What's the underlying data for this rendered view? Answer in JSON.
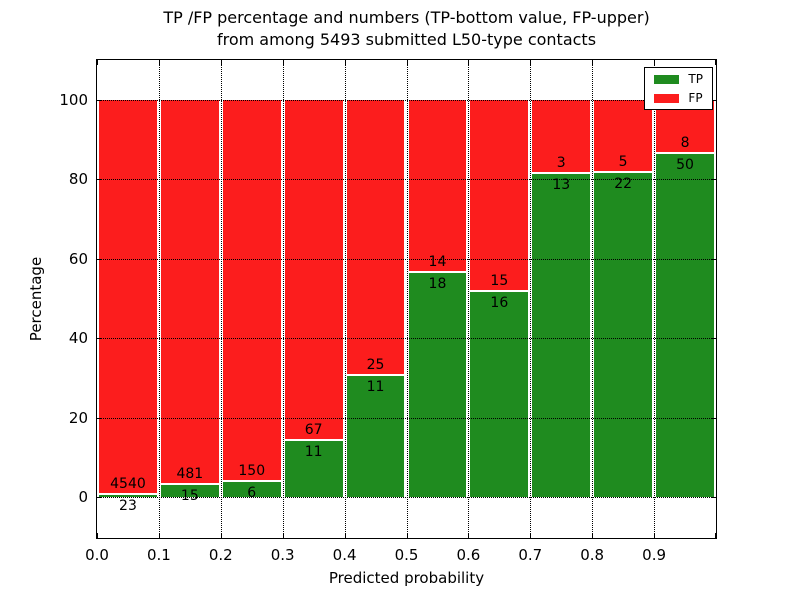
{
  "title": {
    "line1": "TP /FP percentage and numbers (TP-bottom value, FP-upper)",
    "line2": "from among 5493 submitted L50-type contacts"
  },
  "axes": {
    "xlabel": "Predicted probability",
    "ylabel": "Percentage",
    "xtick_labels": [
      "0.0",
      "0.1",
      "0.2",
      "0.3",
      "0.4",
      "0.5",
      "0.6",
      "0.7",
      "0.8",
      "0.9"
    ],
    "ytick_labels": [
      "0",
      "20",
      "40",
      "60",
      "80",
      "100"
    ],
    "ytick_values": [
      0,
      20,
      40,
      60,
      80,
      100
    ]
  },
  "legend": {
    "items": [
      {
        "label": "TP",
        "color": "#1f8b1f"
      },
      {
        "label": "FP",
        "color": "#fc1d1d"
      }
    ],
    "position": "upper right"
  },
  "chart_data": {
    "type": "bar",
    "variant": "stacked-percentage",
    "title": "TP /FP percentage and numbers (TP-bottom value, FP-upper) from among 5493 submitted L50-type contacts",
    "xlabel": "Predicted probability",
    "ylabel": "Percentage",
    "total_contacts": 5493,
    "bin_edges": [
      0.0,
      0.1,
      0.2,
      0.3,
      0.4,
      0.5,
      0.6,
      0.7,
      0.8,
      0.9,
      1.0
    ],
    "categories": [
      "0.0-0.1",
      "0.1-0.2",
      "0.2-0.3",
      "0.3-0.4",
      "0.4-0.5",
      "0.5-0.6",
      "0.6-0.7",
      "0.7-0.8",
      "0.8-0.9",
      "0.9-1.0"
    ],
    "series": [
      {
        "name": "TP",
        "color": "#1f8b1f",
        "counts": [
          23,
          15,
          6,
          11,
          11,
          18,
          16,
          13,
          22,
          50
        ]
      },
      {
        "name": "FP",
        "color": "#fc1d1d",
        "counts": [
          4540,
          481,
          150,
          67,
          25,
          14,
          15,
          3,
          5,
          8
        ]
      }
    ],
    "tp_percent": [
      0.5,
      3.0,
      3.8,
      14.1,
      30.6,
      56.3,
      51.6,
      81.3,
      81.5,
      86.2
    ],
    "ylim_ticks": [
      0,
      100
    ],
    "grid": "dotted-black",
    "legend_position": "upper right"
  }
}
